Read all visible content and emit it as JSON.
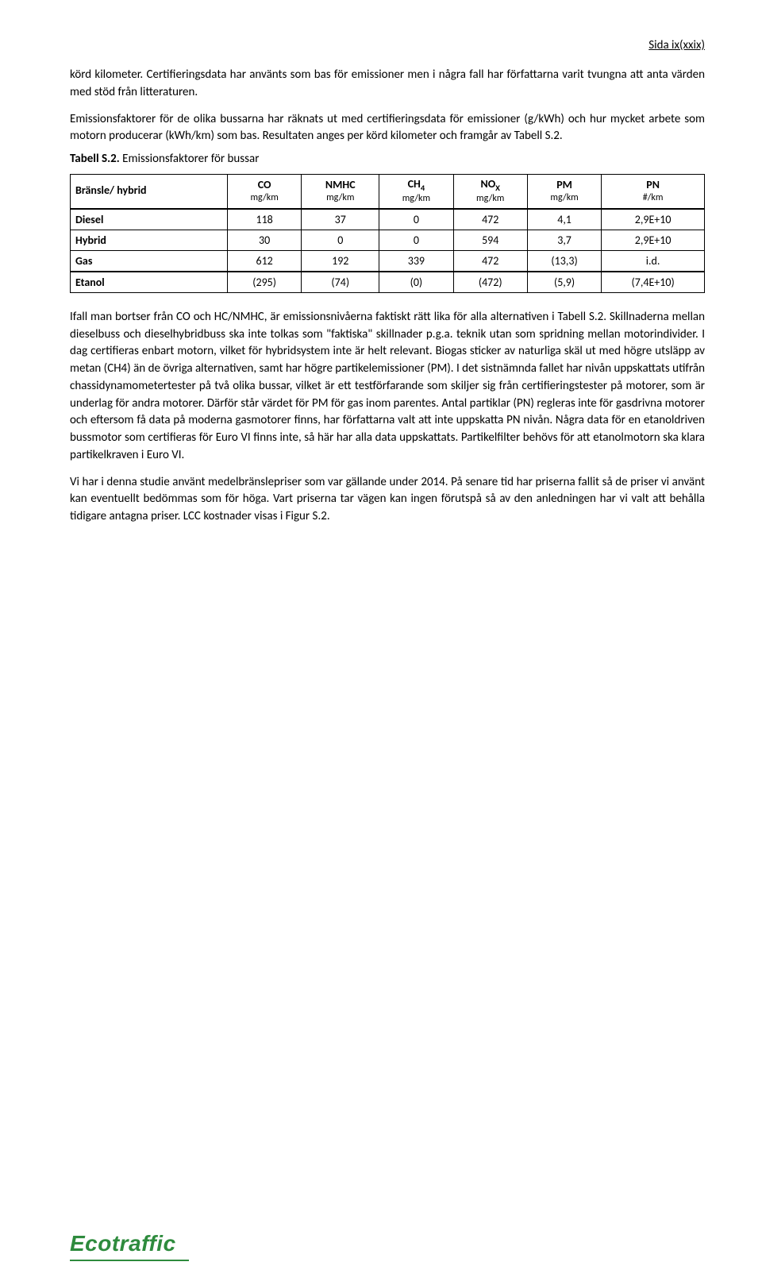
{
  "header": {
    "page_label": "Sida ix(xxix)"
  },
  "intro": {
    "p1": "körd kilometer. Certifieringsdata har använts som bas för emissioner men i några fall har författarna varit tvungna att anta värden med stöd från litteraturen.",
    "p2": "Emissionsfaktorer för de olika bussarna har räknats ut med certifieringsdata för emissioner (g/kWh) och hur mycket arbete som motorn producerar (kWh/km) som bas. Resultaten anges per körd kilometer och framgår av Tabell S.2."
  },
  "table": {
    "caption_bold": "Tabell S.2.",
    "caption_rest": " Emissionsfaktorer för bussar",
    "columns": [
      {
        "label": "Bränsle/\nhybrid",
        "unit": ""
      },
      {
        "label": "CO",
        "unit": "mg/km"
      },
      {
        "label": "NMHC",
        "unit": "mg/km"
      },
      {
        "label": "CH4",
        "unit": "mg/km"
      },
      {
        "label": "NOX",
        "unit": "mg/km"
      },
      {
        "label": "PM",
        "unit": "mg/km"
      },
      {
        "label": "PN",
        "unit": "#/km"
      }
    ],
    "rows": [
      [
        "Diesel",
        "118",
        "37",
        "0",
        "472",
        "4,1",
        "2,9E+10"
      ],
      [
        "Hybrid",
        "30",
        "0",
        "0",
        "594",
        "3,7",
        "2,9E+10"
      ],
      [
        "Gas",
        "612",
        "192",
        "339",
        "472",
        "(13,3)",
        "i.d."
      ],
      [
        "Etanol",
        "(295)",
        "(74)",
        "(0)",
        "(472)",
        "(5,9)",
        "(7,4E+10)"
      ]
    ]
  },
  "body": {
    "p1": "Ifall man bortser från CO och HC/NMHC, är emissionsnivåerna faktiskt rätt lika för alla alternativen i Tabell S.2. Skillnaderna mellan dieselbuss och dieselhybridbuss ska inte tolkas som \"faktiska\" skillnader p.g.a. teknik utan som spridning mellan motorindivider. I dag certifieras enbart motorn, vilket för hybridsystem inte är helt relevant. Biogas sticker av naturliga skäl ut med högre utsläpp av metan (CH4) än de övriga alternativen, samt har högre partikelemissioner (PM). I det sistnämnda fallet har nivån uppskattats utifrån chassidynamometertester på två olika bussar, vilket är ett testförfarande som skiljer sig från certifieringstester på motorer, som är underlag för andra motorer. Därför står värdet för PM för gas inom parentes. Antal partiklar (PN) regleras inte för gasdrivna motorer och eftersom få data på moderna gasmotorer finns, har författarna valt att inte uppskatta PN nivån. Några data för en etanoldriven bussmotor som certifieras för Euro VI finns inte, så här har alla data uppskattats. Partikelfilter behövs för att etanolmotorn ska klara partikelkraven i Euro VI.",
    "p2": "Vi har i denna studie använt medelbränslepriser som var gällande under 2014. På senare tid har priserna fallit så de priser vi använt kan eventuellt bedömmas som för höga. Vart priserna tar vägen kan ingen förutspå så av den anledningen har vi valt att behålla tidigare antagna priser. LCC kostnader visas i Figur S.2."
  },
  "logo": {
    "text": "Ecotraffic"
  }
}
